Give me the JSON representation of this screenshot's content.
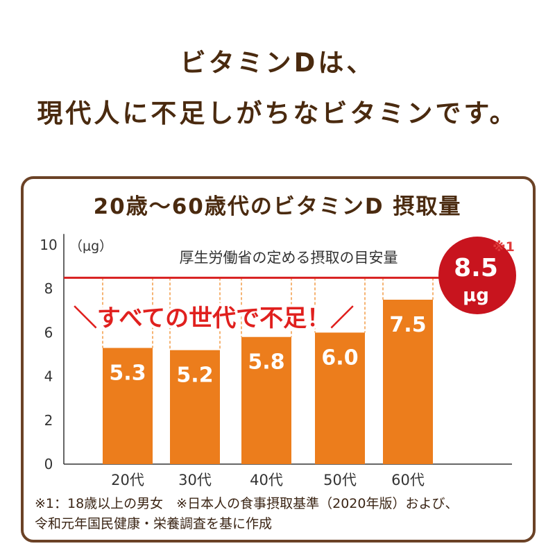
{
  "headline": {
    "line1": "ビタミンDは、",
    "line2": "現代人に不足しがちなビタミンです。"
  },
  "chart_data": {
    "type": "bar",
    "title": "20歳～60歳代のビタミンD 摂取量",
    "unit_label": "（μg）",
    "categories": [
      "20代",
      "30代",
      "40代",
      "50代",
      "60代"
    ],
    "values": [
      5.3,
      5.2,
      5.8,
      6.0,
      7.5
    ],
    "value_labels": [
      "5.3",
      "5.2",
      "5.8",
      "6.0",
      "7.5"
    ],
    "yticks": [
      0,
      2,
      4,
      6,
      8,
      10
    ],
    "ylim": [
      0,
      10.5
    ],
    "reference": {
      "value": 8.5,
      "label": "厚生労働省の定める摂取の目安量",
      "badge_value": "8.5",
      "badge_unit": "μg",
      "note_mark": "※1"
    },
    "callout": "＼すべての世代で不足！／",
    "grid": false,
    "colors": {
      "bar": "#ec7d1c",
      "bar_outline": "#f08a2a",
      "reference_line": "#d82020",
      "badge": "#c8141e",
      "dashed_guide": "#f29a44",
      "callout_text": "#e0201e",
      "axis": "#333333"
    }
  },
  "footnotes": {
    "line1": "※1：18歳以上の男女　※日本人の食事摂取基準（2020年版）および、",
    "line2": "令和元年国民健康・栄養調査を基に作成"
  }
}
